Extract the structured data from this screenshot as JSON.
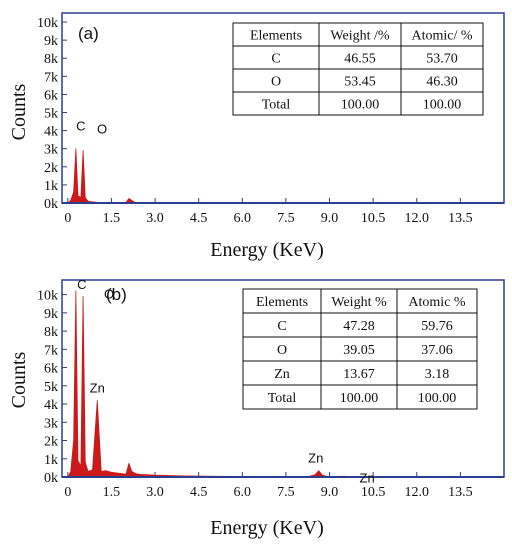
{
  "chart_data": [
    {
      "type": "area",
      "panel_label": "(a)",
      "xlabel": "Energy (KeV)",
      "ylabel": "Counts",
      "xlim": [
        -0.2,
        15.0
      ],
      "ylim": [
        0,
        10500
      ],
      "x_ticks": [
        "0",
        "1.5",
        "3.0",
        "4.5",
        "6.0",
        "7.5",
        "9.0",
        "10.5",
        "12.0",
        "13.5"
      ],
      "x_tick_values": [
        0,
        1.5,
        3.0,
        4.5,
        6.0,
        7.5,
        9.0,
        10.5,
        12.0,
        13.5
      ],
      "y_ticks": [
        "0k",
        "1k",
        "2k",
        "3k",
        "4k",
        "5k",
        "6k",
        "7k",
        "8k",
        "9k",
        "10k"
      ],
      "y_tick_values": [
        0,
        1000,
        2000,
        3000,
        4000,
        5000,
        6000,
        7000,
        8000,
        9000,
        10000
      ],
      "series": [
        {
          "x": [
            0.0,
            0.1,
            0.2,
            0.277,
            0.35,
            0.45,
            0.525,
            0.6,
            0.7,
            1.0,
            1.5,
            2.0,
            2.1,
            2.2,
            2.3,
            2.5,
            3.0,
            5.0,
            10.0,
            14.9
          ],
          "y": [
            0,
            150,
            600,
            3000,
            400,
            300,
            2900,
            300,
            90,
            40,
            30,
            40,
            250,
            140,
            40,
            25,
            15,
            10,
            8,
            5
          ]
        }
      ],
      "peak_labels": [
        {
          "text": "C",
          "x": 0.277,
          "y": 3000
        },
        {
          "text": "O",
          "x": 0.525,
          "y": 2900
        }
      ],
      "table": {
        "headers": [
          "Elements",
          "Weight /%",
          "Atomic/ %"
        ],
        "rows": [
          [
            "C",
            "46.55",
            "53.70"
          ],
          [
            "O",
            "53.45",
            "46.30"
          ],
          [
            "Total",
            "100.00",
            "100.00"
          ]
        ]
      },
      "colors": {
        "fill": "#cc1a1a",
        "frame": "#2c3e8f",
        "baseline": "#2c3e8f"
      }
    },
    {
      "type": "area",
      "panel_label": "(b)",
      "xlabel": "Energy (KeV)",
      "ylabel": "Counts",
      "xlim": [
        -0.2,
        15.0
      ],
      "ylim": [
        0,
        10800
      ],
      "x_ticks": [
        "0",
        "1.5",
        "3.0",
        "4.5",
        "6.0",
        "7.5",
        "9.0",
        "10.5",
        "12.0",
        "13.5"
      ],
      "x_tick_values": [
        0,
        1.5,
        3.0,
        4.5,
        6.0,
        7.5,
        9.0,
        10.5,
        12.0,
        13.5
      ],
      "y_ticks": [
        "0k",
        "1k",
        "2k",
        "3k",
        "4k",
        "5k",
        "6k",
        "7k",
        "8k",
        "9k",
        "10k"
      ],
      "y_tick_values": [
        0,
        1000,
        2000,
        3000,
        4000,
        5000,
        6000,
        7000,
        8000,
        9000,
        10000
      ],
      "series": [
        {
          "x": [
            0.0,
            0.1,
            0.2,
            0.277,
            0.35,
            0.45,
            0.525,
            0.6,
            0.7,
            0.85,
            1.012,
            1.15,
            1.3,
            1.5,
            1.8,
            2.0,
            2.1,
            2.2,
            2.35,
            2.5,
            3.0,
            4.0,
            5.0,
            7.0,
            8.3,
            8.5,
            8.63,
            8.75,
            8.9,
            9.0,
            9.57,
            9.7,
            12.0,
            14.9
          ],
          "y": [
            0,
            300,
            2000,
            10200,
            900,
            600,
            9900,
            800,
            300,
            400,
            4200,
            300,
            350,
            260,
            200,
            150,
            750,
            300,
            180,
            140,
            100,
            60,
            40,
            25,
            40,
            120,
            350,
            100,
            40,
            30,
            40,
            25,
            10,
            5
          ]
        }
      ],
      "peak_labels": [
        {
          "text": "C",
          "x": 0.277,
          "y": 10200
        },
        {
          "text": "O",
          "x": 0.8,
          "y": 9900
        },
        {
          "text": "Zn",
          "x": 1.012,
          "y": 4200
        },
        {
          "text": "Zn",
          "x": 8.63,
          "y": 350
        },
        {
          "text": "Zn",
          "x": 9.57,
          "y": 40
        }
      ],
      "table": {
        "headers": [
          "Elements",
          "Weight %",
          "Atomic %"
        ],
        "rows": [
          [
            "C",
            "47.28",
            "59.76"
          ],
          [
            "O",
            "39.05",
            "37.06"
          ],
          [
            "Zn",
            "13.67",
            "3.18"
          ],
          [
            "Total",
            "100.00",
            "100.00"
          ]
        ]
      },
      "colors": {
        "fill": "#cc1a1a",
        "frame": "#2c3e8f",
        "baseline": "#2c3e8f"
      }
    }
  ]
}
